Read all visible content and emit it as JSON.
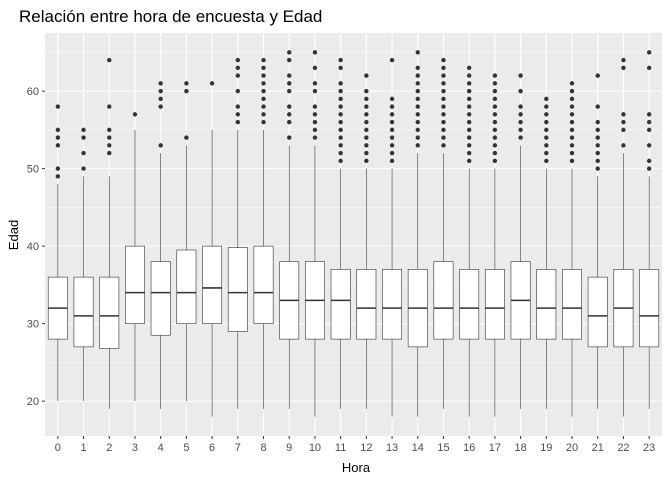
{
  "chart_data": {
    "type": "boxplot",
    "title": "Relación entre hora de encuesta y Edad",
    "xlabel": "Hora",
    "ylabel": "Edad",
    "ylim": [
      15.5,
      67.5
    ],
    "y_ticks": [
      20,
      30,
      40,
      50,
      60
    ],
    "grid": true,
    "legend": "none",
    "colors": {
      "panel": "#ebebeb",
      "grid_major": "#ffffff",
      "box_fill": "#ffffff",
      "box_stroke": "#333333",
      "outlier": "#333333"
    },
    "categories": [
      "0",
      "1",
      "2",
      "3",
      "4",
      "5",
      "6",
      "7",
      "8",
      "9",
      "10",
      "11",
      "12",
      "13",
      "14",
      "15",
      "16",
      "17",
      "18",
      "19",
      "20",
      "21",
      "22",
      "23"
    ],
    "boxes": [
      {
        "x": "0",
        "low": 20,
        "q1": 28,
        "median": 32,
        "q3": 36,
        "high": 48,
        "outliers": [
          49,
          50,
          53,
          54,
          55,
          58
        ]
      },
      {
        "x": "1",
        "low": 20,
        "q1": 27,
        "median": 31,
        "q3": 36,
        "high": 49,
        "outliers": [
          50,
          52,
          54,
          55
        ]
      },
      {
        "x": "2",
        "low": 19,
        "q1": 26.8,
        "median": 31,
        "q3": 36,
        "high": 49,
        "outliers": [
          52,
          53,
          54,
          55,
          58,
          64
        ]
      },
      {
        "x": "3",
        "low": 20,
        "q1": 30,
        "median": 34,
        "q3": 40,
        "high": 55,
        "outliers": [
          57
        ]
      },
      {
        "x": "4",
        "low": 19,
        "q1": 28.5,
        "median": 34,
        "q3": 38,
        "high": 52,
        "outliers": [
          53,
          58,
          59,
          60,
          61
        ]
      },
      {
        "x": "5",
        "low": 20,
        "q1": 30,
        "median": 34,
        "q3": 39.5,
        "high": 53,
        "outliers": [
          54,
          60,
          61
        ]
      },
      {
        "x": "6",
        "low": 18,
        "q1": 30,
        "median": 34.6,
        "q3": 40,
        "high": 55,
        "outliers": [
          61
        ]
      },
      {
        "x": "7",
        "low": 19,
        "q1": 29,
        "median": 34,
        "q3": 39.8,
        "high": 55,
        "outliers": [
          56,
          57,
          58,
          60,
          62,
          63,
          64
        ]
      },
      {
        "x": "8",
        "low": 19,
        "q1": 30,
        "median": 34,
        "q3": 40,
        "high": 55,
        "outliers": [
          56,
          57,
          58,
          59,
          60,
          61,
          62,
          63,
          64
        ]
      },
      {
        "x": "9",
        "low": 19,
        "q1": 28,
        "median": 33,
        "q3": 38,
        "high": 53,
        "outliers": [
          54,
          56,
          57,
          58,
          60,
          61,
          62,
          64,
          65
        ]
      },
      {
        "x": "10",
        "low": 18,
        "q1": 28,
        "median": 33,
        "q3": 38,
        "high": 53,
        "outliers": [
          54,
          55,
          56,
          57,
          58,
          60,
          61,
          63,
          65
        ]
      },
      {
        "x": "11",
        "low": 19,
        "q1": 28,
        "median": 33,
        "q3": 37,
        "high": 50,
        "outliers": [
          51,
          52,
          53,
          54,
          55,
          56,
          57,
          58,
          59,
          60,
          61,
          63,
          64
        ]
      },
      {
        "x": "12",
        "low": 19,
        "q1": 28,
        "median": 32,
        "q3": 37,
        "high": 50,
        "outliers": [
          51,
          52,
          53,
          54,
          55,
          56,
          57,
          58,
          59,
          60,
          62
        ]
      },
      {
        "x": "13",
        "low": 18,
        "q1": 28,
        "median": 32,
        "q3": 37,
        "high": 50,
        "outliers": [
          51,
          52,
          53,
          54,
          55,
          56,
          57,
          58,
          59,
          64
        ]
      },
      {
        "x": "14",
        "low": 18,
        "q1": 27,
        "median": 32,
        "q3": 37,
        "high": 52,
        "outliers": [
          53,
          54,
          55,
          56,
          57,
          58,
          59,
          60,
          61,
          62,
          63,
          65
        ]
      },
      {
        "x": "15",
        "low": 19,
        "q1": 28,
        "median": 32,
        "q3": 38,
        "high": 52,
        "outliers": [
          53,
          54,
          55,
          56,
          57,
          58,
          59,
          60,
          61,
          62,
          63,
          64
        ]
      },
      {
        "x": "16",
        "low": 18,
        "q1": 28,
        "median": 32,
        "q3": 37,
        "high": 50,
        "outliers": [
          51,
          52,
          53,
          54,
          55,
          56,
          57,
          58,
          59,
          60,
          61,
          62,
          63
        ]
      },
      {
        "x": "17",
        "low": 18,
        "q1": 28,
        "median": 32,
        "q3": 37,
        "high": 50,
        "outliers": [
          51,
          52,
          53,
          54,
          55,
          56,
          57,
          58,
          59,
          60,
          61,
          62
        ]
      },
      {
        "x": "18",
        "low": 19,
        "q1": 28,
        "median": 33,
        "q3": 38,
        "high": 53,
        "outliers": [
          54,
          55,
          56,
          57,
          58,
          60,
          62
        ]
      },
      {
        "x": "19",
        "low": 19,
        "q1": 28,
        "median": 32,
        "q3": 37,
        "high": 50,
        "outliers": [
          51,
          52,
          53,
          54,
          55,
          56,
          57,
          58,
          59
        ]
      },
      {
        "x": "20",
        "low": 18,
        "q1": 28,
        "median": 32,
        "q3": 37,
        "high": 50,
        "outliers": [
          51,
          52,
          53,
          54,
          55,
          56,
          57,
          58,
          59,
          60,
          61
        ]
      },
      {
        "x": "21",
        "low": 19,
        "q1": 27,
        "median": 31,
        "q3": 36,
        "high": 49,
        "outliers": [
          50,
          51,
          52,
          53,
          54,
          55,
          56,
          58,
          62
        ]
      },
      {
        "x": "22",
        "low": 18,
        "q1": 27,
        "median": 32,
        "q3": 37,
        "high": 52,
        "outliers": [
          53,
          55,
          56,
          57,
          63,
          64
        ]
      },
      {
        "x": "23",
        "low": 19,
        "q1": 27,
        "median": 31,
        "q3": 37,
        "high": 49,
        "outliers": [
          50,
          51,
          53,
          55,
          56,
          57,
          63,
          65
        ]
      }
    ]
  }
}
